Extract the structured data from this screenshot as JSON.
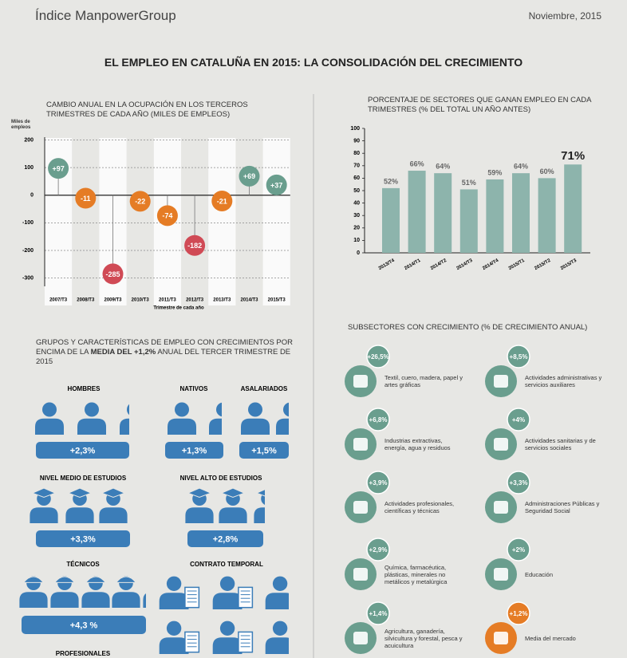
{
  "header": {
    "brand": "Índice ManpowerGroup",
    "date": "Noviembre, 2015",
    "title": "EL EMPLEO EN CATALUÑA EN 2015: LA CONSOLIDACIÓN DEL CRECIMIENTO"
  },
  "chart_data": [
    {
      "type": "lollipop",
      "title": "CAMBIO ANUAL EN LA OCUPACIÓN EN LOS TERCEROS TRIMESTRES DE CADA AÑO (MILES DE EMPLEOS)",
      "y_axis_label": "Miles de empleos",
      "x_axis_label": "Trimestre de cada año",
      "categories": [
        "2007/T3",
        "2008/T3",
        "2009/T3",
        "2010/T3",
        "2011/T3",
        "2012/T3",
        "2013/T3",
        "2014/T3",
        "2015/T3"
      ],
      "values": [
        97,
        -11,
        -285,
        -22,
        -74,
        -182,
        -21,
        69,
        37
      ],
      "value_labels": [
        "+97",
        "-11",
        "-285",
        "-22",
        "-74",
        "-182",
        "-21",
        "+69",
        "+37"
      ],
      "colors": [
        "#6a9e8e",
        "#e57c25",
        "#d04a55",
        "#e57c25",
        "#e57c25",
        "#d04a55",
        "#e57c25",
        "#6a9e8e",
        "#6a9e8e"
      ],
      "ylim": [
        -330,
        210
      ],
      "yticks": [
        200,
        100,
        0,
        -100,
        -200,
        -300
      ],
      "grid": true
    },
    {
      "type": "bar",
      "title": "PORCENTAJE DE SECTORES QUE GANAN EMPLEO EN CADA TRIMESTRES (% DEL TOTAL UN AÑO ANTES)",
      "categories": [
        "2013/T4",
        "2014/T1",
        "2014/T2",
        "2014/T3",
        "2014/T4",
        "2015/T1",
        "2015/T2",
        "2015/T3"
      ],
      "values": [
        52,
        66,
        64,
        51,
        59,
        64,
        60,
        71
      ],
      "value_labels": [
        "52%",
        "66%",
        "64%",
        "51%",
        "59%",
        "64%",
        "60%",
        "71%"
      ],
      "color": "#8db4ac",
      "ylim": [
        0,
        100
      ],
      "yticks": [
        0,
        10,
        20,
        30,
        40,
        50,
        60,
        70,
        80,
        90,
        100
      ]
    }
  ],
  "groups": {
    "title_parts": [
      "GRUPOS Y CARACTERÍSTICAS DE EMPLEO CON CRECIMIENTOS POR ENCIMA DE LA ",
      "MEDIA DEL +1,2%",
      " ANUAL DEL TERCER TRIMESTRE DE 2015"
    ],
    "items": [
      {
        "label": "HOMBRES",
        "value": "+2,3%"
      },
      {
        "label": "NATIVOS",
        "value": "+1,3%"
      },
      {
        "label": "ASALARIADOS",
        "value": "+1,5%"
      },
      {
        "label": "NIVEL MEDIO DE ESTUDIOS",
        "value": "+3,3%"
      },
      {
        "label": "NIVEL ALTO DE ESTUDIOS",
        "value": "+2,8%"
      },
      {
        "label": "TÉCNICOS",
        "value": "+4,3 %"
      },
      {
        "label": "CONTRATO TEMPORAL"
      },
      {
        "label": "PROFESIONALES"
      }
    ]
  },
  "subsectors": {
    "title": "SUBSECTORES CON CRECIMIENTO (% DE CRECIMIENTO ANUAL)",
    "items": [
      {
        "value": "+26,5%",
        "label": "Textil, cuero, madera, papel y artes gráficas",
        "color": "#6a9e8e"
      },
      {
        "value": "+8,5%",
        "label": "Actividades administrativas y servicios auxiliares",
        "color": "#6a9e8e"
      },
      {
        "value": "+6,8%",
        "label": "Industrias extractivas, energía, agua y residuos",
        "color": "#6a9e8e"
      },
      {
        "value": "+4%",
        "label": "Actividades sanitarias y de servicios sociales",
        "color": "#6a9e8e"
      },
      {
        "value": "+3,9%",
        "label": "Actividades profesionales, científicas y técnicas",
        "color": "#6a9e8e"
      },
      {
        "value": "+3,3%",
        "label": "Administraciones Públicas y Seguridad Social",
        "color": "#6a9e8e"
      },
      {
        "value": "+2,9%",
        "label": "Química, farmacéutica, plásticas, minerales no metálicos y metalúrgica",
        "color": "#6a9e8e"
      },
      {
        "value": "+2%",
        "label": "Educación",
        "color": "#6a9e8e"
      },
      {
        "value": "+1,4%",
        "label": "Agricultura, ganadería, silvicultura y forestal, pesca y acuicultura",
        "color": "#6a9e8e"
      },
      {
        "value": "+1,2%",
        "label": "Media del mercado",
        "color": "#e57c25"
      }
    ]
  }
}
